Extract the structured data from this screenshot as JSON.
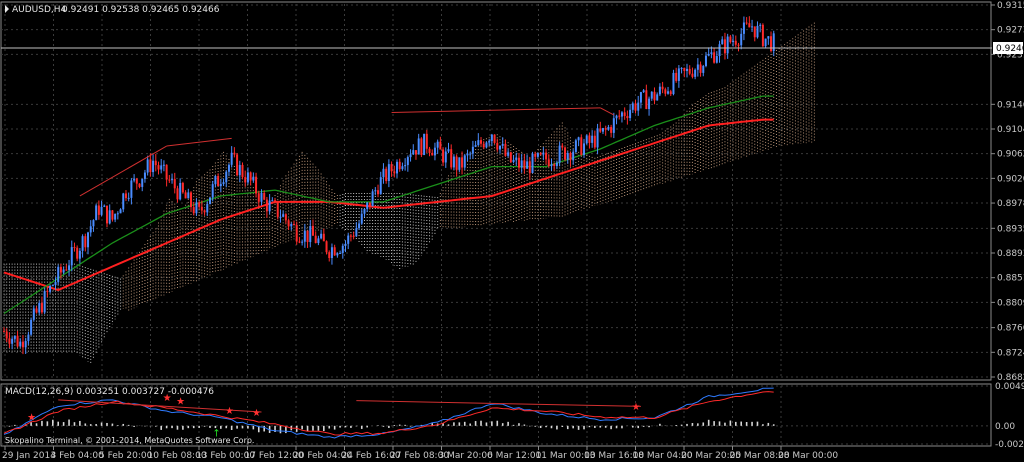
{
  "header": {
    "symbol_label": "AUDUSD,H4",
    "ohlc_text": "0.92491 0.92538 0.92465 0.92466"
  },
  "macd_header": {
    "text": "MACD(12,26,9) 0.003251 0.003727 -0.000476"
  },
  "copyright": "Skopalino Terminal, © 2001-2014, MetaQuotes Software Corp.",
  "current_price": "0.92466",
  "colors": {
    "background": "#000000",
    "grid": "#3a3a3a",
    "bull": "#4a8cff",
    "bear": "#ff2a2a",
    "ma_slow": "#ff2020",
    "ma_fast": "#1a8f1a",
    "cloud_a": "#f2c09b",
    "cloud_b": "#ffffff",
    "macd_line": "#2f7bff",
    "signal_line": "#ff2a2a",
    "histogram": "#d8d8d8"
  },
  "chart_data": [
    {
      "type": "candlestick",
      "symbol": "AUDUSD,H4",
      "title": "AUDUSD,H4",
      "y_ticks": [
        "0.93150",
        "0.92730",
        "0.92310",
        "0.91460",
        "0.91040",
        "0.90620",
        "0.90200",
        "0.89780",
        "0.89350",
        "0.88930",
        "0.88510",
        "0.88090",
        "0.87660",
        "0.87240",
        "0.86820"
      ],
      "y_ticks_numeric": [
        0.9315,
        0.9273,
        0.9231,
        0.9146,
        0.9104,
        0.9062,
        0.902,
        0.8978,
        0.8935,
        0.8893,
        0.8851,
        0.8809,
        0.8766,
        0.8724,
        0.8682
      ],
      "x_ticks": [
        "29 Jan 2014",
        "3 Feb 04:00",
        "5 Feb 20:00",
        "10 Feb 08:00",
        "13 Feb 00:00",
        "17 Feb 12:00",
        "20 Feb 04:00",
        "24 Feb 16:00",
        "27 Feb 08:00",
        "3 Mar 20:00",
        "6 Mar 12:00",
        "11 Mar 00:00",
        "13 Mar 16:00",
        "18 Mar 04:00",
        "20 Mar 20:00",
        "25 Mar 08:00",
        "28 Mar 00:00"
      ],
      "ylim": [
        0.8682,
        0.9315
      ],
      "current_price": 0.92466,
      "close_path": [
        [
          0,
          0.876
        ],
        [
          6,
          0.874
        ],
        [
          12,
          0.879
        ],
        [
          18,
          0.884
        ],
        [
          24,
          0.888
        ],
        [
          30,
          0.892
        ],
        [
          35,
          0.897
        ],
        [
          40,
          0.895
        ],
        [
          45,
          0.9
        ],
        [
          50,
          0.902
        ],
        [
          55,
          0.905
        ],
        [
          60,
          0.902
        ],
        [
          66,
          0.899
        ],
        [
          72,
          0.896
        ],
        [
          78,
          0.901
        ],
        [
          84,
          0.905
        ],
        [
          90,
          0.902
        ],
        [
          96,
          0.898
        ],
        [
          102,
          0.896
        ],
        [
          108,
          0.893
        ],
        [
          114,
          0.892
        ],
        [
          120,
          0.89
        ],
        [
          126,
          0.891
        ],
        [
          132,
          0.895
        ],
        [
          138,
          0.901
        ],
        [
          144,
          0.904
        ],
        [
          150,
          0.907
        ],
        [
          156,
          0.908
        ],
        [
          162,
          0.906
        ],
        [
          168,
          0.904
        ],
        [
          174,
          0.907
        ],
        [
          180,
          0.91
        ],
        [
          186,
          0.905
        ],
        [
          192,
          0.904
        ],
        [
          198,
          0.905
        ],
        [
          204,
          0.906
        ],
        [
          210,
          0.907
        ],
        [
          216,
          0.908
        ],
        [
          222,
          0.91
        ],
        [
          228,
          0.913
        ],
        [
          234,
          0.915
        ],
        [
          240,
          0.916
        ],
        [
          246,
          0.918
        ],
        [
          252,
          0.92
        ],
        [
          258,
          0.922
        ],
        [
          264,
          0.924
        ],
        [
          270,
          0.926
        ],
        [
          276,
          0.928
        ],
        [
          280,
          0.926
        ],
        [
          284,
          0.925
        ]
      ],
      "series": [
        {
          "name": "MA slow",
          "values": [
            [
              0,
              0.886
            ],
            [
              20,
              0.883
            ],
            [
              40,
              0.887
            ],
            [
              60,
              0.891
            ],
            [
              80,
              0.895
            ],
            [
              100,
              0.898
            ],
            [
              120,
              0.898
            ],
            [
              140,
              0.897
            ],
            [
              160,
              0.898
            ],
            [
              180,
              0.899
            ],
            [
              200,
              0.902
            ],
            [
              220,
              0.905
            ],
            [
              240,
              0.908
            ],
            [
              260,
              0.911
            ],
            [
              280,
              0.912
            ]
          ]
        },
        {
          "name": "MA fast",
          "values": [
            [
              0,
              0.879
            ],
            [
              20,
              0.885
            ],
            [
              40,
              0.891
            ],
            [
              60,
              0.896
            ],
            [
              80,
              0.899
            ],
            [
              100,
              0.9
            ],
            [
              120,
              0.898
            ],
            [
              140,
              0.898
            ],
            [
              160,
              0.901
            ],
            [
              180,
              0.904
            ],
            [
              200,
              0.904
            ],
            [
              220,
              0.907
            ],
            [
              240,
              0.911
            ],
            [
              260,
              0.914
            ],
            [
              280,
              0.916
            ]
          ]
        }
      ]
    },
    {
      "type": "macd",
      "title": "MACD(12,26,9) 0.003251 0.003727 -0.000476",
      "y_ticks": [
        "0.004906",
        "0.00",
        "-0.002238"
      ],
      "y_ticks_numeric": [
        0.004906,
        0.0,
        -0.002238
      ],
      "ylim": [
        -0.002238,
        0.004906
      ],
      "series": [
        {
          "name": "MACD",
          "values": [
            [
              0,
              -0.0012
            ],
            [
              20,
              0.0025
            ],
            [
              40,
              0.0032
            ],
            [
              60,
              0.0018
            ],
            [
              80,
              0.001
            ],
            [
              100,
              -0.0006
            ],
            [
              120,
              -0.0014
            ],
            [
              140,
              -0.001
            ],
            [
              160,
              0.0004
            ],
            [
              180,
              0.0028
            ],
            [
              200,
              0.0015
            ],
            [
              220,
              0.0008
            ],
            [
              240,
              0.001
            ],
            [
              260,
              0.0036
            ],
            [
              280,
              0.0045
            ]
          ]
        },
        {
          "name": "Signal",
          "values": [
            [
              0,
              -0.001
            ],
            [
              20,
              0.0018
            ],
            [
              40,
              0.003
            ],
            [
              60,
              0.0022
            ],
            [
              80,
              0.0012
            ],
            [
              100,
              0.0002
            ],
            [
              120,
              -0.001
            ],
            [
              140,
              -0.0009
            ],
            [
              160,
              0.0002
            ],
            [
              180,
              0.0022
            ],
            [
              200,
              0.0018
            ],
            [
              220,
              0.0011
            ],
            [
              240,
              0.001
            ],
            [
              260,
              0.003
            ],
            [
              280,
              0.0042
            ]
          ]
        }
      ]
    }
  ]
}
